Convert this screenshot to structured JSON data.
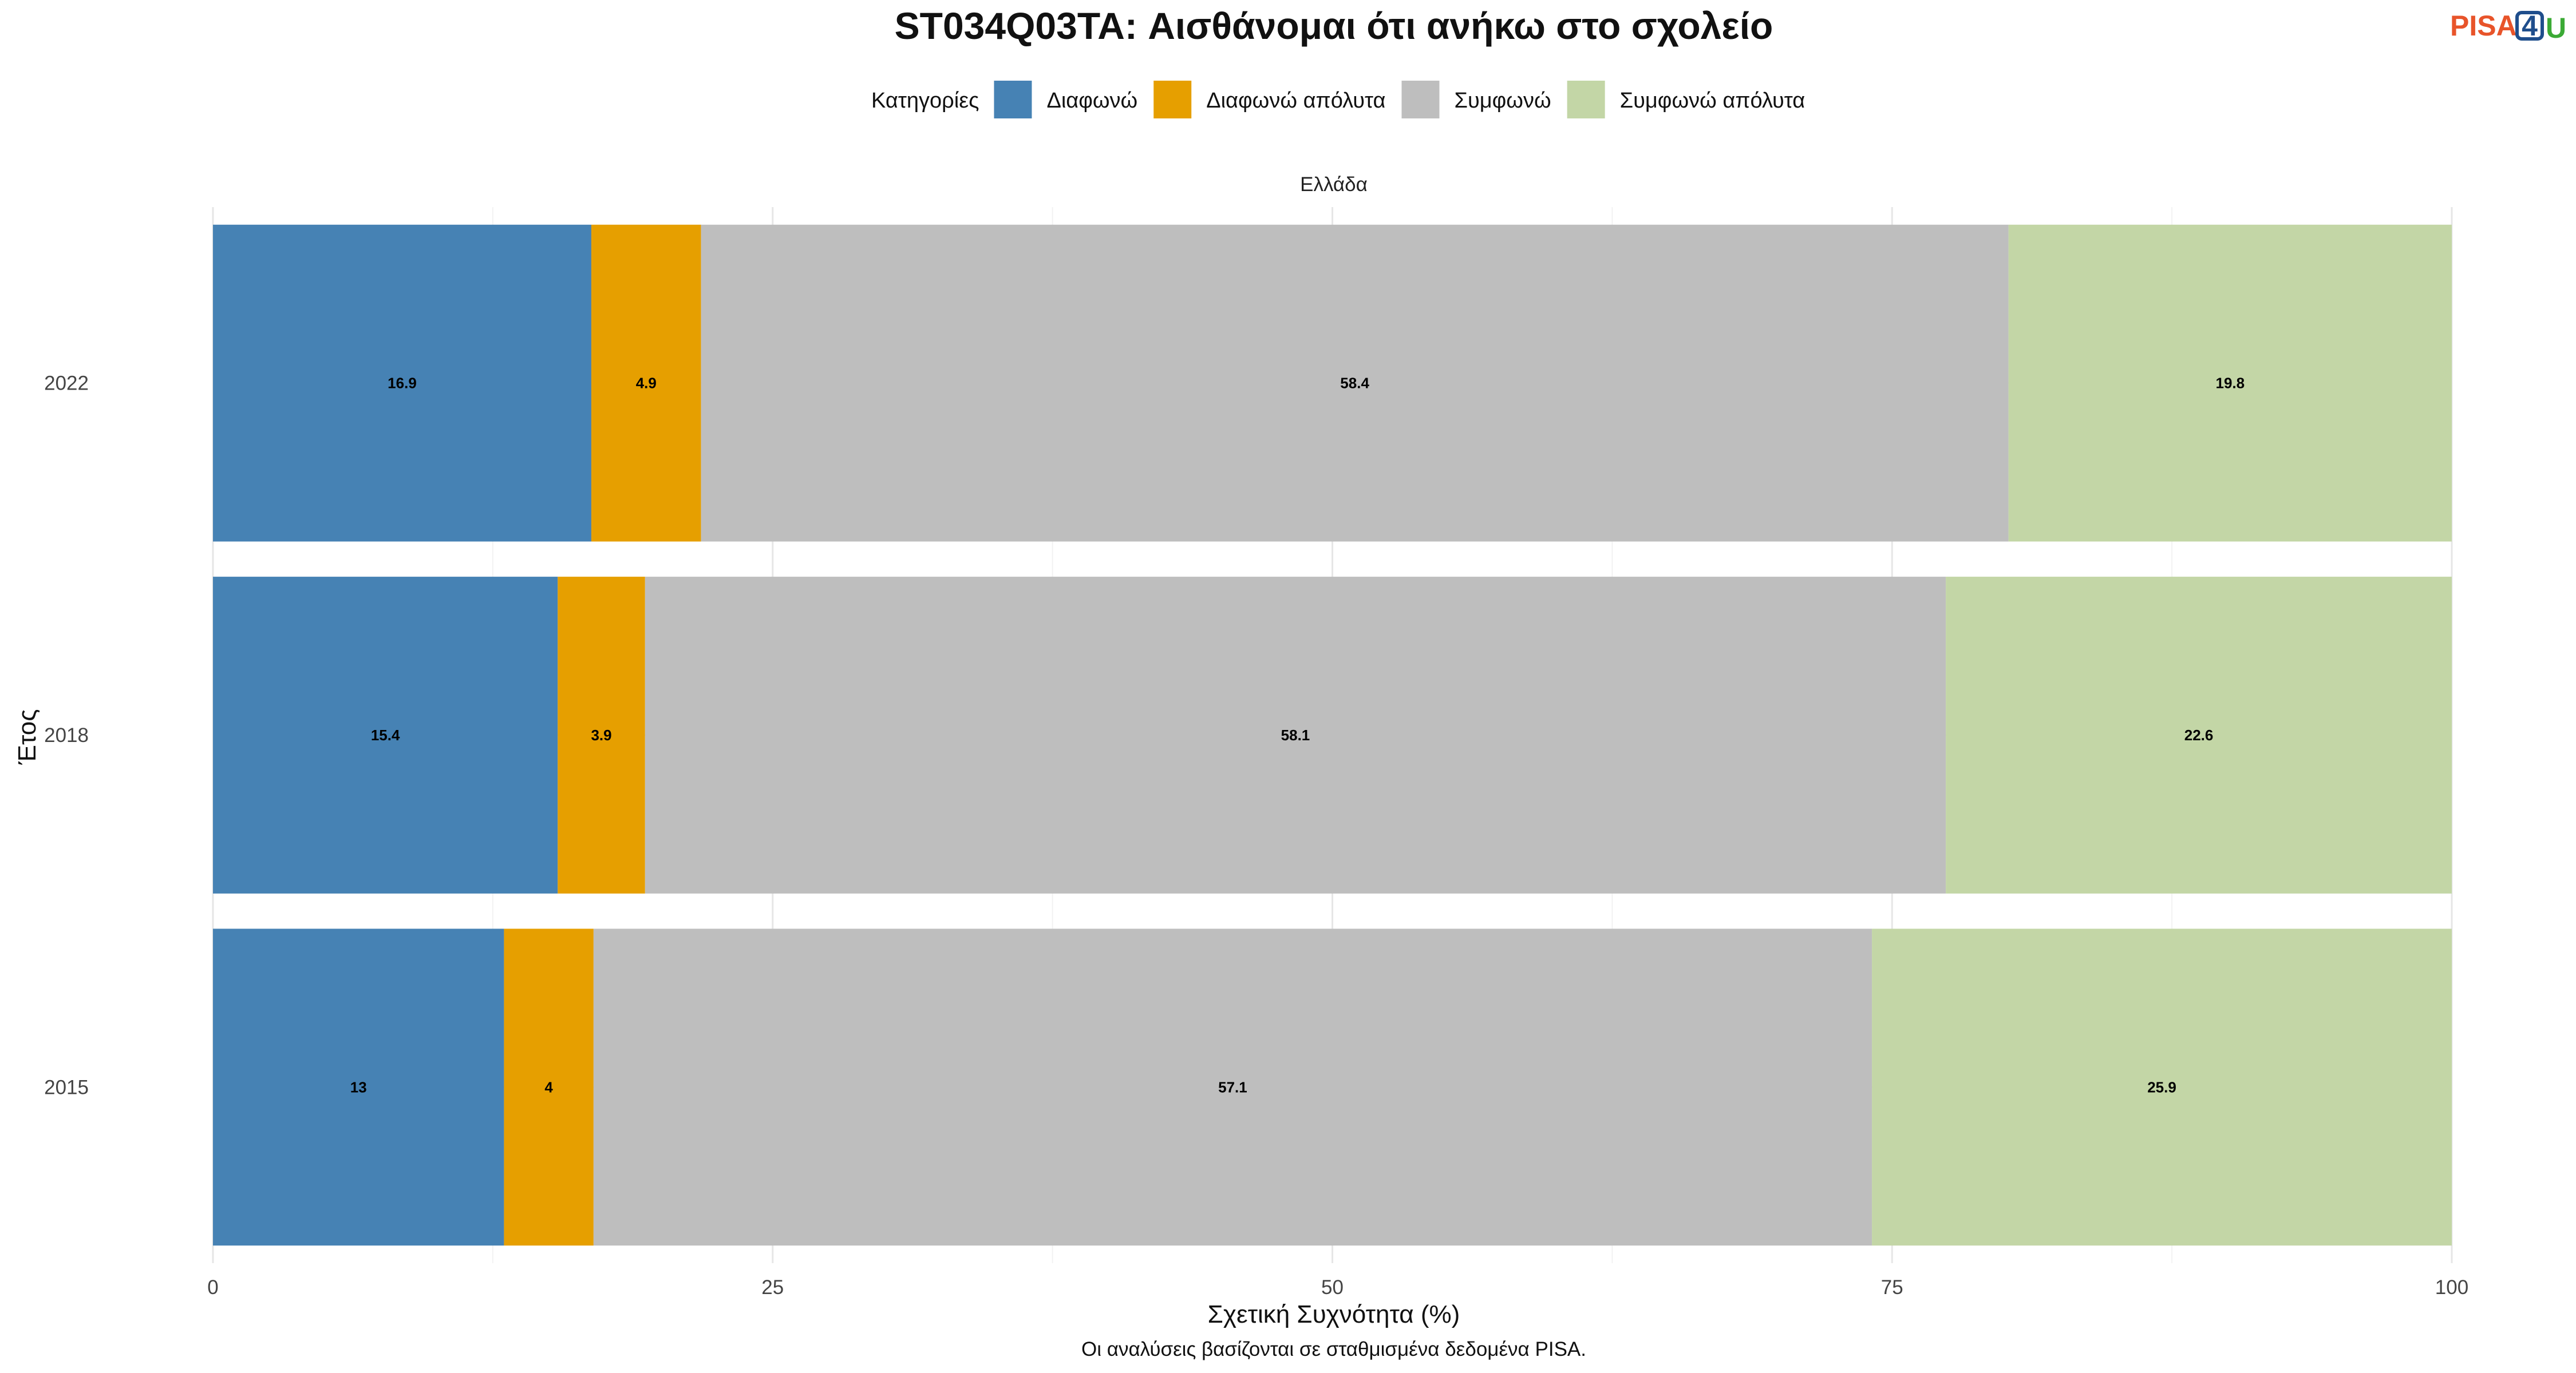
{
  "chart_data": {
    "type": "bar",
    "orientation": "horizontal",
    "stacked": true,
    "title": "ST034Q03TA: Αισθάνομαι ότι ανήκω στο σχολείο",
    "facet_label": "Ελλάδα",
    "xlabel": "Σχετική Συχνότητα (%)",
    "ylabel": "Έτος",
    "caption": "Οι αναλύσεις βασίζονται σε σταθμισμένα δεδομένα PISA.",
    "xlim": [
      0,
      100
    ],
    "x_ticks": [
      "0",
      "25",
      "50",
      "75",
      "100"
    ],
    "grid": true,
    "legend": {
      "position": "top",
      "title": "Κατηγορίες"
    },
    "categories": [
      "2022",
      "2018",
      "2015"
    ],
    "series": [
      {
        "name": "Διαφωνώ",
        "color": "#4682B4",
        "values": [
          16.9,
          15.4,
          13
        ],
        "labels": [
          "16.9",
          "15.4",
          "13"
        ]
      },
      {
        "name": "Διαφωνώ απόλυτα",
        "color": "#E69F00",
        "values": [
          4.9,
          3.9,
          4
        ],
        "labels": [
          "4.9",
          "3.9",
          "4"
        ]
      },
      {
        "name": "Συμφωνώ",
        "color": "#BEBEBE",
        "values": [
          58.4,
          58.1,
          57.1
        ],
        "labels": [
          "58.4",
          "58.1",
          "57.1"
        ]
      },
      {
        "name": "Συμφωνώ απόλυτα",
        "color": "#C3D6A6",
        "values": [
          19.8,
          22.6,
          25.9
        ],
        "labels": [
          "19.8",
          "22.6",
          "25.9"
        ]
      }
    ]
  },
  "logo": {
    "text_main": "PISA",
    "text_digit": "4",
    "text_tail": "U",
    "color_main": "#E8542A",
    "color_digit": "#1F4E8C",
    "color_tail": "#3BAA35"
  }
}
